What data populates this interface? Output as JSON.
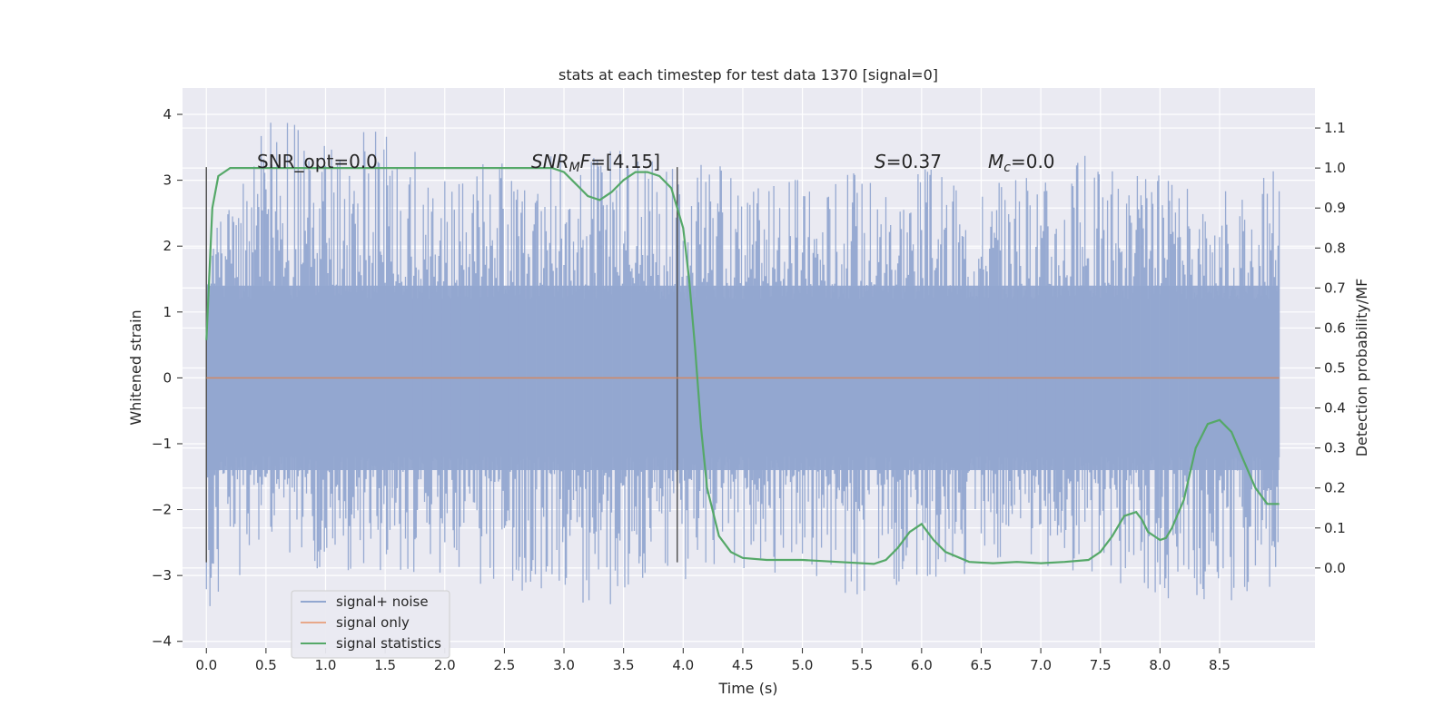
{
  "chart_data": {
    "type": "line",
    "title": "stats at each timestep for test data 1370 [signal=0]",
    "xlabel": "Time (s)",
    "ylabel_left": "Whitened strain",
    "ylabel_right": "Detection probability/MF",
    "xlim": [
      -0.2,
      9.3
    ],
    "ylim_left": [
      -4.1,
      4.4
    ],
    "ylim_right": [
      -0.2,
      1.2
    ],
    "x_ticks": [
      "0.0",
      "0.5",
      "1.0",
      "1.5",
      "2.0",
      "2.5",
      "3.0",
      "3.5",
      "4.0",
      "4.5",
      "5.0",
      "5.5",
      "6.0",
      "6.5",
      "7.0",
      "7.5",
      "8.0",
      "8.5"
    ],
    "y_ticks_left": [
      "4",
      "3",
      "2",
      "1",
      "0",
      "−1",
      "−2",
      "−3",
      "−4"
    ],
    "y_ticks_right": [
      "1.1",
      "1.0",
      "0.9",
      "0.8",
      "0.7",
      "0.6",
      "0.5",
      "0.4",
      "0.3",
      "0.2",
      "0.1",
      "0.0"
    ],
    "grid": true,
    "legend_position": "lower-left",
    "legend": [
      "signal+ noise",
      "signal only",
      "signal statistics"
    ],
    "annotations": {
      "snr_opt": "SNR_opt=0.0",
      "snr_mf_main": "SNR",
      "snr_mf_sub": "M",
      "snr_mf_tail": "F=[4.15]",
      "s_main": "S",
      "s_tail": "=0.37",
      "mc_main": "M",
      "mc_sub": "c",
      "mc_tail": "=0.0"
    },
    "vertical_lines": [
      {
        "x": 0.0,
        "y_range": [
          -2.8,
          3.2
        ]
      },
      {
        "x": 3.95,
        "y_range": [
          -2.8,
          3.2
        ]
      }
    ],
    "series": [
      {
        "name": "signal+ noise",
        "color": "#92a7d0",
        "axis": "left",
        "x_range": [
          0.0,
          9.0
        ],
        "envelope_upper": [
          2.2,
          4.0,
          3.6,
          3.9,
          3.5,
          3.2,
          3.6,
          3.5,
          3.3,
          3.0,
          3.2,
          3.5,
          3.0,
          3.2,
          3.4,
          3.1,
          2.9,
          3.3
        ],
        "envelope_lower": [
          -3.6,
          -2.6,
          -3.2,
          -2.9,
          -3.1,
          -3.3,
          -3.6,
          -3.3,
          -2.9,
          -3.0,
          -3.5,
          -3.2,
          -3.0,
          -2.9,
          -3.0,
          -3.4,
          -3.5,
          -3.5
        ]
      },
      {
        "name": "signal only",
        "color": "#dd8452",
        "axis": "left",
        "x": [
          0.0,
          9.0
        ],
        "y": [
          0.0,
          0.0
        ]
      },
      {
        "name": "signal statistics",
        "color": "#55a868",
        "axis": "right",
        "x": [
          0.0,
          0.05,
          0.1,
          0.15,
          0.2,
          0.3,
          0.5,
          1.0,
          1.5,
          2.0,
          2.5,
          2.8,
          2.9,
          3.0,
          3.1,
          3.2,
          3.3,
          3.4,
          3.5,
          3.6,
          3.7,
          3.8,
          3.9,
          4.0,
          4.05,
          4.1,
          4.15,
          4.2,
          4.3,
          4.4,
          4.5,
          4.7,
          5.0,
          5.3,
          5.6,
          5.7,
          5.8,
          5.9,
          6.0,
          6.1,
          6.2,
          6.4,
          6.6,
          6.8,
          7.0,
          7.2,
          7.4,
          7.5,
          7.6,
          7.7,
          7.8,
          7.85,
          7.9,
          8.0,
          8.05,
          8.1,
          8.2,
          8.3,
          8.4,
          8.5,
          8.6,
          8.7,
          8.8,
          8.9,
          9.0
        ],
        "y": [
          0.57,
          0.9,
          0.98,
          0.99,
          1.0,
          1.0,
          1.0,
          1.0,
          1.0,
          1.0,
          1.0,
          1.0,
          1.0,
          0.99,
          0.96,
          0.93,
          0.92,
          0.94,
          0.97,
          0.99,
          0.99,
          0.98,
          0.95,
          0.85,
          0.72,
          0.55,
          0.35,
          0.2,
          0.08,
          0.04,
          0.025,
          0.02,
          0.02,
          0.015,
          0.01,
          0.02,
          0.05,
          0.09,
          0.11,
          0.07,
          0.04,
          0.015,
          0.012,
          0.015,
          0.012,
          0.015,
          0.02,
          0.04,
          0.08,
          0.13,
          0.14,
          0.12,
          0.09,
          0.07,
          0.075,
          0.1,
          0.17,
          0.3,
          0.36,
          0.37,
          0.34,
          0.27,
          0.2,
          0.16,
          0.16
        ]
      }
    ]
  }
}
